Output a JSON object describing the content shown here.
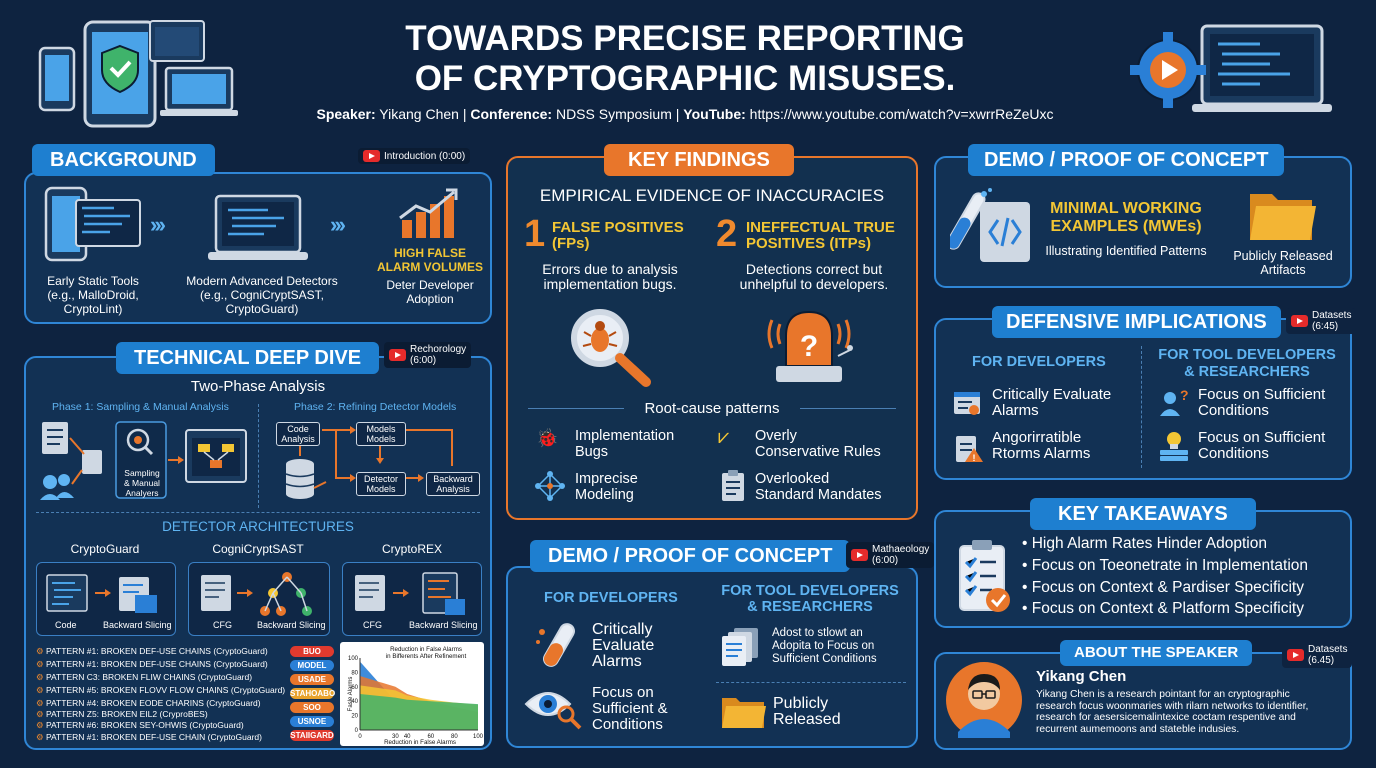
{
  "header": {
    "title_line1": "TOWARDS PRECISE REPORTING",
    "title_line2": "OF CRYPTOGRAPHIC MISUSES.",
    "speaker_label": "Speaker:",
    "speaker": "Yikang Chen",
    "conference_label": "Conference:",
    "conference": "NDSS Symposium",
    "youtube_label": "YouTube:",
    "youtube_url": "https://www.youtube.com/watch?v=xwrrReZeUxc",
    "sep": "|"
  },
  "background": {
    "title": "BACKGROUND",
    "yt_label": "Introduction (0:00)",
    "col1": [
      "Early Static Tools",
      "(e.g., MalloDroid,",
      "CryptoLint)"
    ],
    "col2": [
      "Modern Advanced Detectors",
      "(e.g., CogniCryptSAST,",
      "CryptoGuard)"
    ],
    "col3_title": [
      "HIGH FALSE",
      "ALARM VOLUMES"
    ],
    "col3_text": [
      "Deter Developer",
      "Adoption"
    ]
  },
  "deep_dive": {
    "title": "TECHNICAL DEEP DIVE",
    "yt_label": [
      "Rechorology",
      "(6:00)"
    ],
    "subtitle": "Two-Phase Analysis",
    "phase1": "Phase 1: Sampling & Manual Analysis",
    "phase2": "Phase 2: Refining Detector Models",
    "sampling_label": [
      "Sampling",
      "& Manual",
      "Analyers"
    ],
    "code_analysis": [
      "Code",
      "Analysis"
    ],
    "models_models": [
      "Models",
      "Models"
    ],
    "detector_models": [
      "Detector",
      "Models"
    ],
    "backward_analysis": [
      "Backward",
      "Analysis"
    ],
    "arch_title": "DETECTOR ARCHITECTURES",
    "archs": [
      {
        "name": "CryptoGuard",
        "l": "Code",
        "r": "Backward Slicing"
      },
      {
        "name": "CogniCryptSAST",
        "l": "CFG",
        "r": "Backward Slicing"
      },
      {
        "name": "CryptoREX",
        "l": "CFG",
        "r": "Backward Slicing"
      }
    ],
    "patterns": [
      "PATTERN #1: BROKEN DEF-USE CHAINS (CryptoGuard)",
      "PATTERN #1: BROKEN DEF-USE CHAINS (CryptoGuard)",
      "PATTERN C3: BROKEN FLIW CHAINS (CryptoGuard)",
      "PATTERN #5: BROKEN FLOVV FLOW CHAINS (CryptoGuard)",
      "PATTERN #4: BROKEN EODE CHARINS (CryptoGuard)",
      "PATTERN Z5: BROKEN EIL2 (CryproBES)",
      "PATTERN #6: BROKEN SEY-OHWIS (CryptoGuard)",
      "PATTERN #1: BROKEN DEF-USE CHAIN (CryptoGuard)"
    ],
    "tags": [
      "BUO",
      "MODEL",
      "USADE",
      "STAHOABO",
      "SOO",
      "USNOE",
      "STAIIGARD"
    ]
  },
  "chart_data": {
    "type": "area",
    "title": [
      "Reduction in False Alarms",
      "in Bifferents After Refinement"
    ],
    "xlabel": "Reduction in False Alarms",
    "ylabel": "Fasle Alarms",
    "x": [
      0,
      30,
      40,
      60,
      80,
      100
    ],
    "xticks": [
      "0",
      "30",
      "40",
      "60",
      "80",
      "100"
    ],
    "yticks": [
      "100",
      "80",
      "60",
      "40",
      "20",
      "0"
    ],
    "ylim": [
      0,
      100
    ],
    "series": [
      {
        "color": "#2a7fd6",
        "values": [
          95,
          40,
          30,
          22,
          15,
          10
        ]
      },
      {
        "color": "#e8762b",
        "values": [
          75,
          60,
          50,
          40,
          32,
          25
        ]
      },
      {
        "color": "#f3c634",
        "values": [
          62,
          55,
          48,
          42,
          38,
          35
        ]
      },
      {
        "color": "#3fb36b",
        "values": [
          50,
          45,
          42,
          40,
          38,
          36
        ]
      }
    ]
  },
  "findings": {
    "title": "KEY FINDINGS",
    "subtitle": "EMPIRICAL EVIDENCE OF INACCURACIES",
    "f1_num": "1",
    "f1_title": [
      "FALSE POSITIVES",
      "(FPs)"
    ],
    "f1_text": [
      "Errors due to analysis",
      "implementation bugs."
    ],
    "f2_num": "2",
    "f2_title": [
      "INEFFECTUAL TRUE",
      "POSITIVES (ITPs)"
    ],
    "f2_text": [
      "Detections correct but",
      "unhelpful to developers."
    ],
    "root_title": "Root-cause patterns",
    "roots": [
      [
        "Implementation",
        "Bugs"
      ],
      [
        "Overly",
        "Conservative Rules"
      ],
      [
        "Imprecise",
        "Modeling"
      ],
      [
        "Overlooked",
        "Standard Mandates"
      ]
    ]
  },
  "demo_center": {
    "title": "DEMO / PROOF OF CONCEPT",
    "yt_label": [
      "Mathaeology",
      "(6:00)"
    ],
    "left_title": "FOR DEVELOPERS",
    "right_title": [
      "FOR TOOL DEVELOPERS",
      "& RESEARCHERS"
    ],
    "l1": [
      "Critically",
      "Evaluate",
      "Alarms"
    ],
    "l2": [
      "Focus on",
      "Sufficient &",
      "Conditions"
    ],
    "r1": [
      "Adost to stlowt an",
      "Adopita to Focus on",
      "Sufficient Conditions"
    ],
    "r2": [
      "Publicly",
      "Released"
    ]
  },
  "demo_right": {
    "title": "DEMO / PROOF OF CONCEPT",
    "mwe_title": [
      "MINIMAL WORKING",
      "EXAMPLES (MWEs)"
    ],
    "mwe_text": "Illustrating Identified Patterns",
    "artifacts": [
      "Publicly Released",
      "Artifacts"
    ]
  },
  "defensive": {
    "title": "DEFENSIVE IMPLICATIONS",
    "yt_label": [
      "Datasets",
      "(6:45)"
    ],
    "left_title": "FOR DEVELOPERS",
    "right_title": [
      "FOR TOOL DEVELOPERS",
      "& RESEARCHERS"
    ],
    "l1": [
      "Critically Evaluate",
      "Alarms"
    ],
    "l2": [
      "Angorirratible",
      "Rtorms Alarms"
    ],
    "r1": [
      "Focus on Sufficient",
      "Conditions"
    ],
    "r2": [
      "Focus on Sufficient",
      "Conditions"
    ]
  },
  "takeaways": {
    "title": "KEY TAKEAWAYS",
    "items": [
      "High Alarm Rates Hinder Adoption",
      "Focus on Toeonetrate in Implementation",
      "Focus on Context & Pardiser Specificity",
      "Focus on Context & Platform Specificity"
    ]
  },
  "speaker": {
    "title": "ABOUT THE SPEAKER",
    "yt_label": [
      "Datasets",
      "(6.45)"
    ],
    "name": "Yikang Chen",
    "bio": [
      "Yikang Chen is a research pointant for an cryptographic",
      "research focus woonmaries with rilarn networks to identifier,",
      "research for aesersicemalintexice coctam respentive and",
      "recurrent aumemoons and stateble indusies."
    ]
  }
}
